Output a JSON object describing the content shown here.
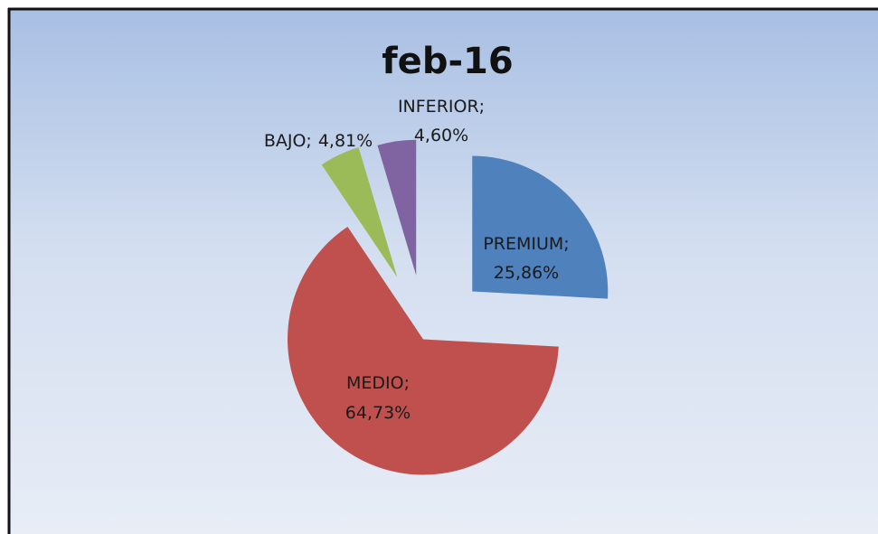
{
  "chart_data": {
    "type": "pie",
    "title": "feb-16",
    "categories": [
      "PREMIUM",
      "MEDIO",
      "BAJO",
      "INFERIOR"
    ],
    "values": [
      25.86,
      64.73,
      4.81,
      4.6
    ],
    "value_labels": [
      "25,86%",
      "64,73%",
      "4,81%",
      "4,60%"
    ],
    "label_separator": ";",
    "colors": [
      "#4f81bd",
      "#c0504d",
      "#9bbb59",
      "#8064a2"
    ]
  }
}
